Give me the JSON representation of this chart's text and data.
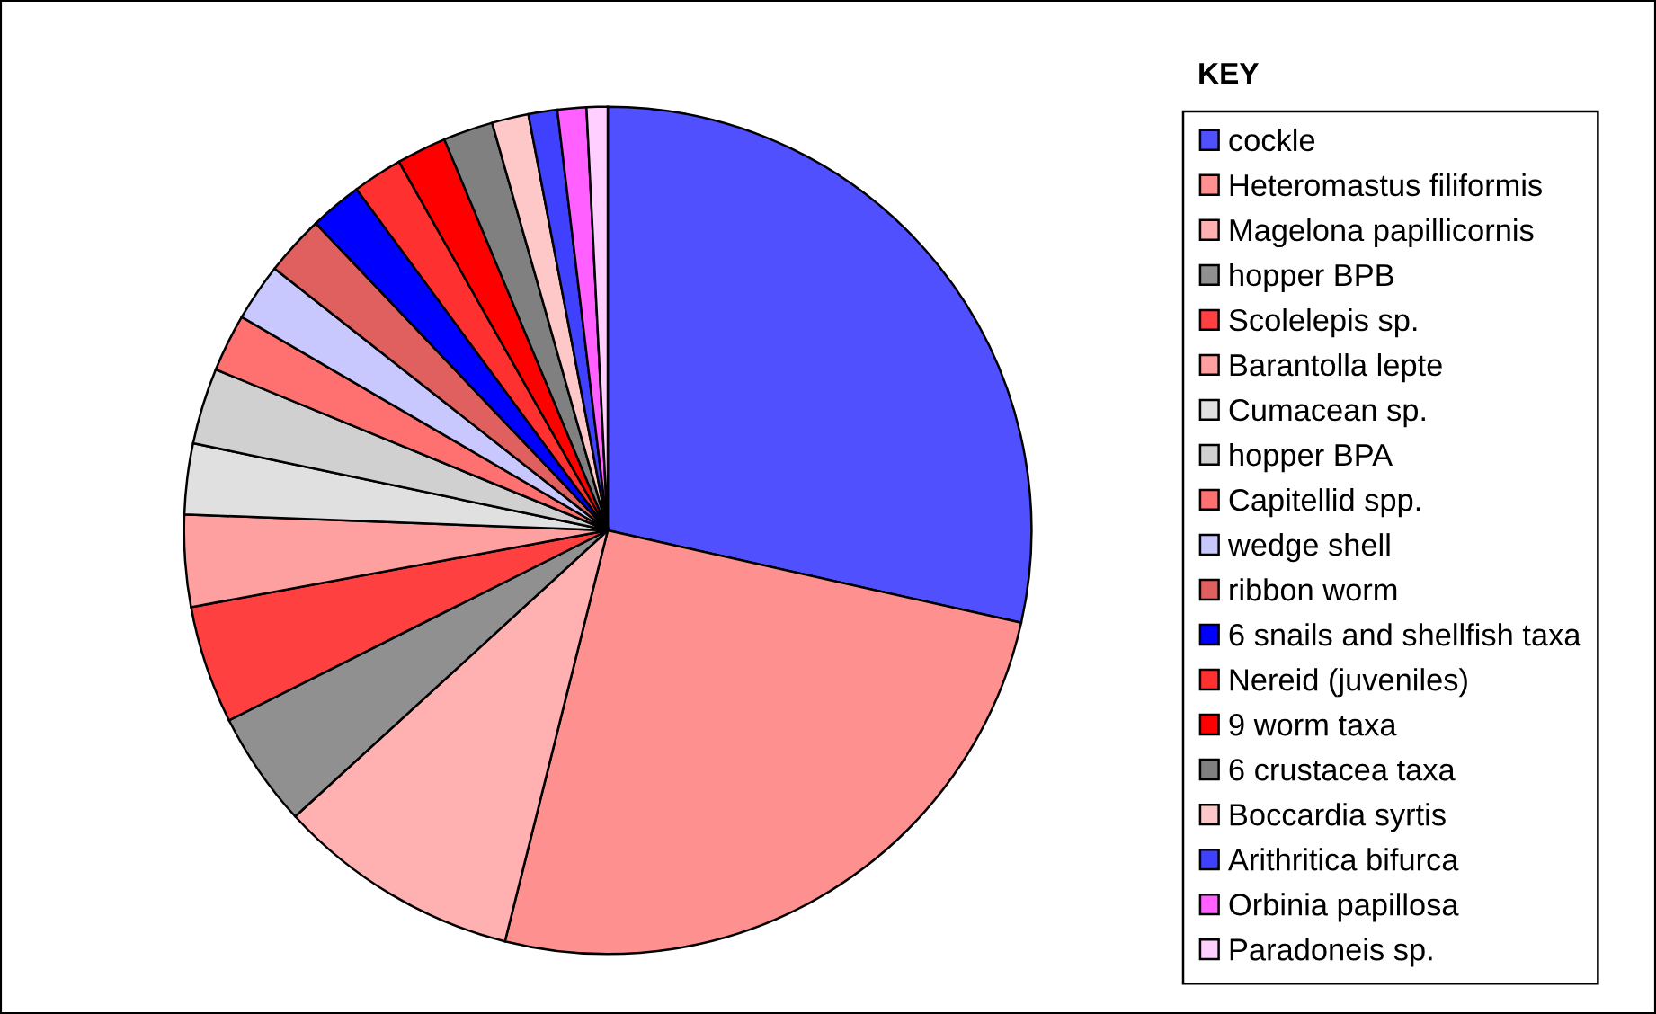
{
  "chart_data": {
    "type": "pie",
    "legend_title": "KEY",
    "categories": [
      "cockle",
      "Heteromastus filiformis",
      "Magelona papillicornis",
      "hopper BPB",
      "Scolelepis sp.",
      "Barantolla lepte",
      "Cumacean sp.",
      "hopper BPA",
      "Capitellid spp.",
      "wedge shell",
      "ribbon worm",
      "6 snails and shellfish taxa",
      "Nereid (juveniles)",
      "9 worm taxa",
      "6 crustacea taxa",
      "Boccardia syrtis",
      "Arithritica bifurca",
      "Orbinia papillosa",
      "Paradoneis sp."
    ],
    "values": [
      28.5,
      25.4,
      9.3,
      4.4,
      4.5,
      3.5,
      2.7,
      2.9,
      2.2,
      2.2,
      2.3,
      2.0,
      1.9,
      1.9,
      1.9,
      1.4,
      1.1,
      1.1,
      0.8
    ],
    "colors": [
      "#5050ff",
      "#ff9090",
      "#ffb0b0",
      "#909090",
      "#ff4040",
      "#ffa0a0",
      "#e0e0e0",
      "#d0d0d0",
      "#ff7070",
      "#c8c8ff",
      "#e06060",
      "#0000ff",
      "#ff3030",
      "#ff0000",
      "#808080",
      "#ffc8c8",
      "#4040ff",
      "#ff60ff",
      "#ffd0ff"
    ],
    "legend": "right"
  }
}
